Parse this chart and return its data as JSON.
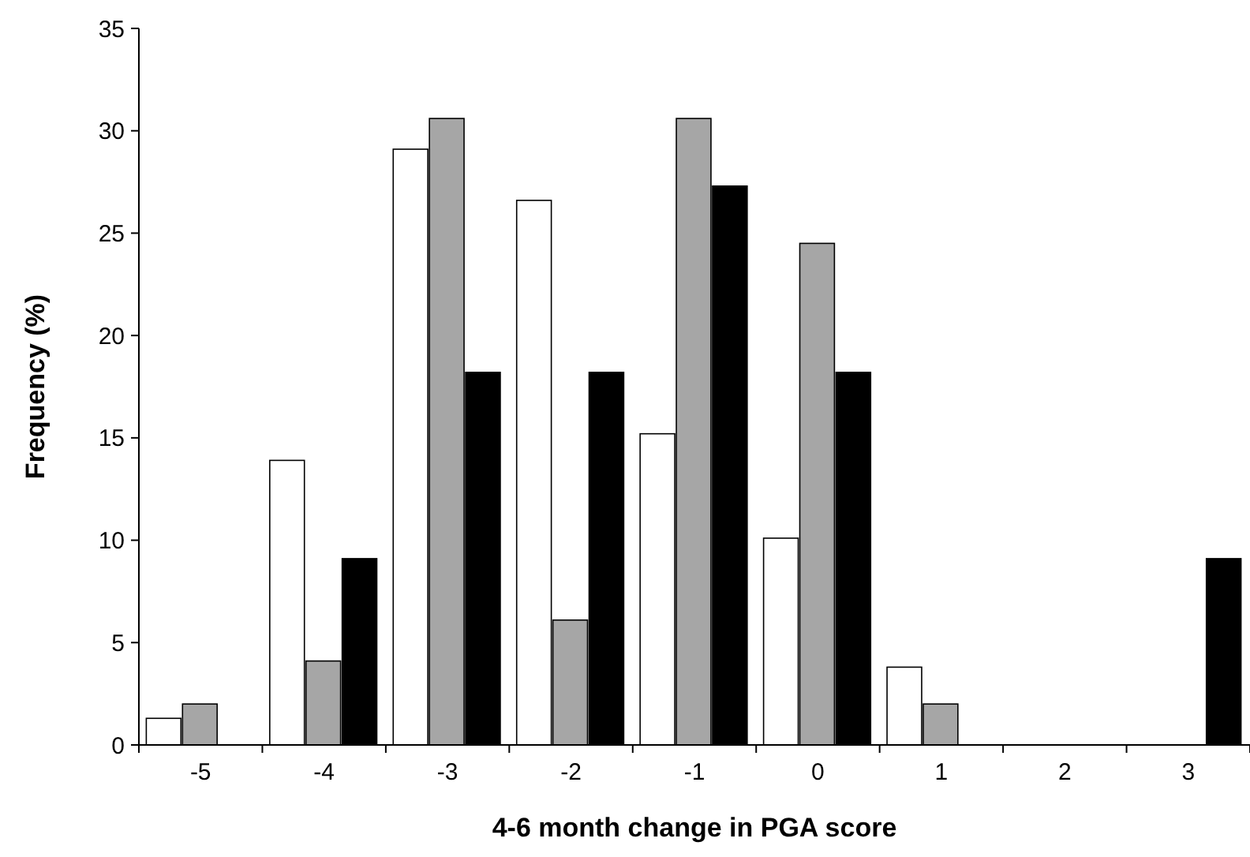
{
  "chart_data": {
    "type": "bar",
    "xlabel": "4-6 month change in PGA score",
    "ylabel": "Frequency (%)",
    "categories": [
      "-5",
      "-4",
      "-3",
      "-2",
      "-1",
      "0",
      "1",
      "2",
      "3"
    ],
    "series": [
      {
        "color": "#ffffff",
        "values": [
          1.3,
          13.9,
          29.1,
          26.6,
          15.2,
          10.1,
          3.8,
          0,
          0
        ]
      },
      {
        "color": "#a6a6a6",
        "values": [
          2.0,
          4.1,
          30.6,
          6.1,
          30.6,
          24.5,
          2.0,
          0,
          0
        ]
      },
      {
        "color": "#000000",
        "values": [
          0,
          9.1,
          18.2,
          18.2,
          27.3,
          18.2,
          0,
          0,
          9.1
        ]
      }
    ],
    "ylim": [
      0,
      35
    ],
    "yticks": [
      0,
      5,
      10,
      15,
      20,
      25,
      30,
      35
    ],
    "grid": false
  }
}
